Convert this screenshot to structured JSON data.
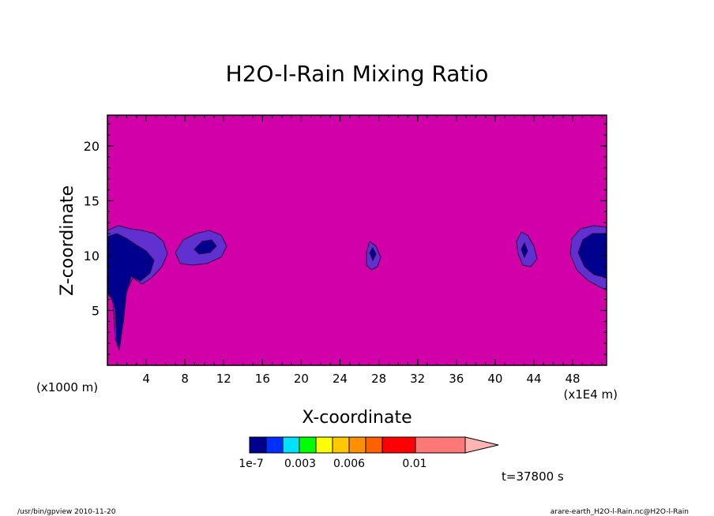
{
  "chart_data": {
    "type": "heatmap",
    "title": "H2O-l-Rain Mixing Ratio",
    "xlabel": "X-coordinate",
    "ylabel": "Z-coordinate",
    "x_unit_left": "(x1000 m)",
    "x_unit_right": "(x1E4 m)",
    "xlim": [
      0,
      51.5
    ],
    "ylim": [
      0,
      22.8
    ],
    "x_ticks": [
      "4",
      "8",
      "12",
      "16",
      "20",
      "24",
      "28",
      "32",
      "36",
      "40",
      "44",
      "48"
    ],
    "y_ticks": [
      "5",
      "10",
      "15",
      "20"
    ],
    "colorbar": {
      "levels": [
        "1e-7",
        "0.003",
        "0.006",
        "0.01"
      ],
      "colors": [
        "#00008f",
        "#0030ff",
        "#00e0ff",
        "#00ff00",
        "#ffff00",
        "#ffc800",
        "#ff9000",
        "#ff6000",
        "#ff0000",
        "#ff7878",
        "#ffb4b4"
      ]
    },
    "background_color": "#d100a8",
    "cloud_colors": [
      "#00008f",
      "#6030d0"
    ],
    "time_label": "t=37800 s"
  },
  "footer": {
    "left": "/usr/bin/gpview  2010-11-20",
    "right": "arare-earth_H2O-l-Rain.nc@H2O-l-Rain"
  }
}
